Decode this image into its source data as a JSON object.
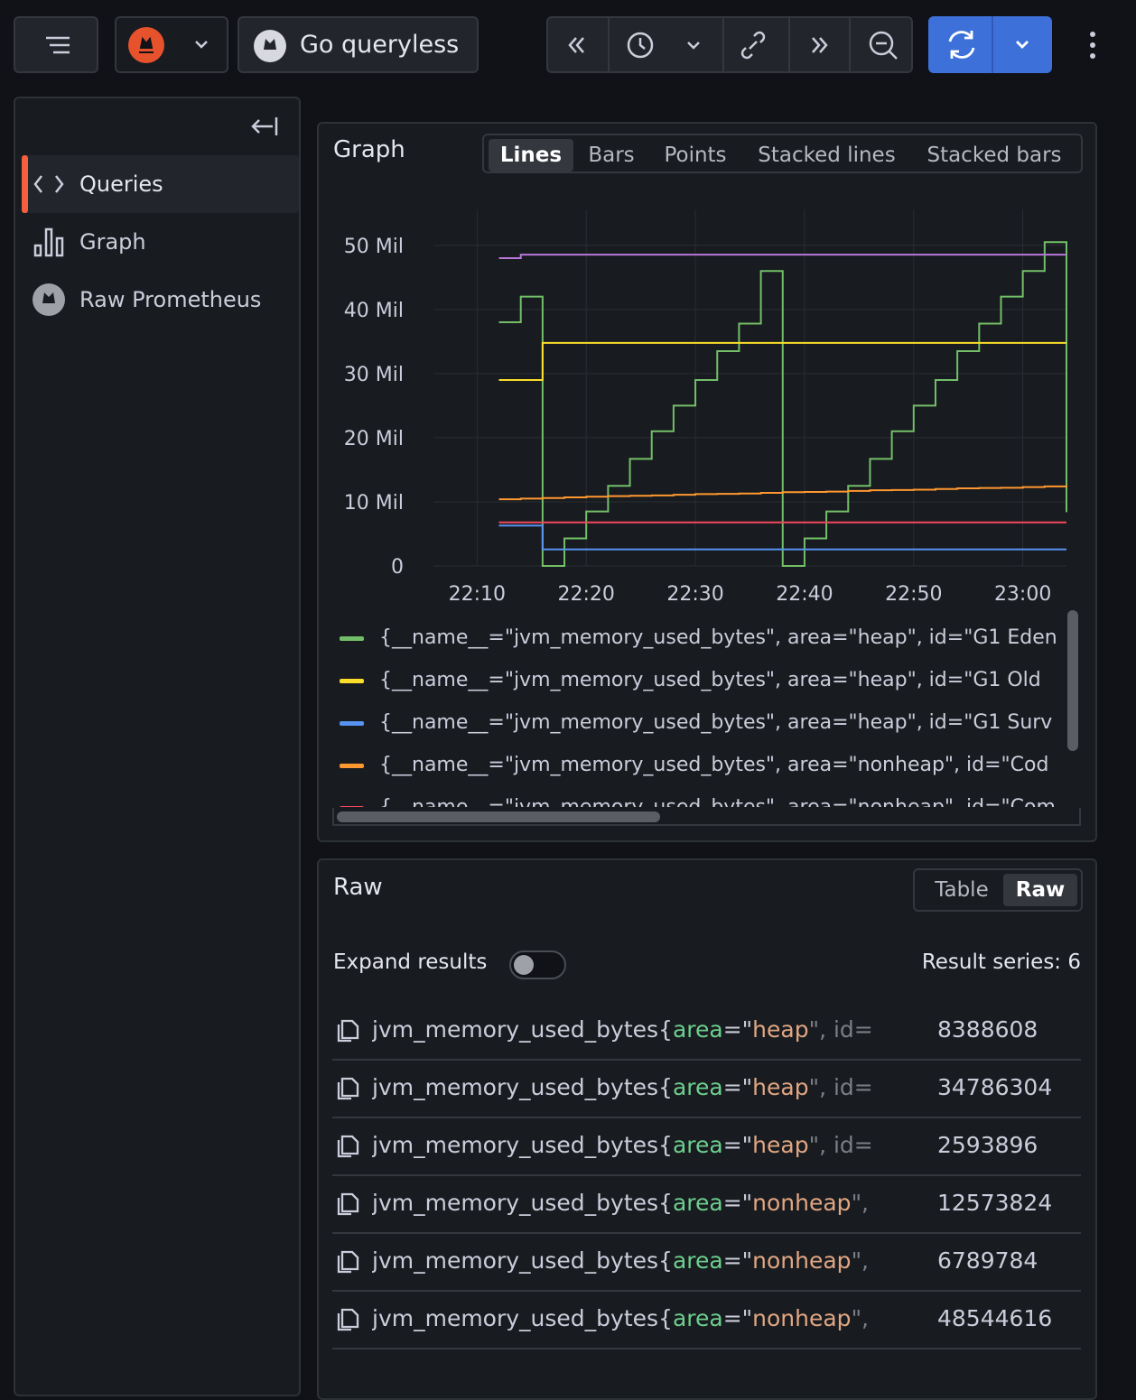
{
  "toolbar": {
    "query_button": "Go queryless"
  },
  "sidebar": {
    "items": [
      "Queries",
      "Graph",
      "Raw Prometheus"
    ],
    "selected": 0
  },
  "graph_panel": {
    "title": "Graph",
    "view_options": [
      "Lines",
      "Bars",
      "Points",
      "Stacked lines",
      "Stacked bars"
    ],
    "selected_view": 0
  },
  "chart_data": {
    "type": "line",
    "interpolation": "step",
    "x": [
      "22:12",
      "22:14",
      "22:16",
      "22:18",
      "22:20",
      "22:22",
      "22:24",
      "22:26",
      "22:28",
      "22:30",
      "22:32",
      "22:34",
      "22:36",
      "22:38",
      "22:40",
      "22:42",
      "22:44",
      "22:46",
      "22:48",
      "22:50",
      "22:52",
      "22:54",
      "22:56",
      "22:58",
      "23:00",
      "23:02",
      "23:04"
    ],
    "xlim": [
      "22:06",
      "23:04"
    ],
    "xticks": [
      "22:10",
      "22:20",
      "22:30",
      "22:40",
      "22:50",
      "23:00"
    ],
    "ylim": [
      0,
      55600000
    ],
    "yticks": [
      0,
      {
        "value": 10000000,
        "label": "10 Mil"
      },
      {
        "value": 20000000,
        "label": "20 Mil"
      },
      {
        "value": 30000000,
        "label": "30 Mil"
      },
      {
        "value": 40000000,
        "label": "40 Mil"
      },
      {
        "value": 50000000,
        "label": "50 Mil"
      }
    ],
    "grid": true,
    "series": [
      {
        "name": "{__name__=\"jvm_memory_used_bytes\", area=\"heap\", id=\"G1 Eden",
        "color": "#73bf69",
        "values": [
          38000000,
          42000000,
          0,
          4300000,
          8500000,
          12500000,
          16700000,
          21000000,
          25000000,
          29000000,
          33500000,
          37800000,
          46000000,
          0,
          4300000,
          8500000,
          12500000,
          16700000,
          21000000,
          25000000,
          29000000,
          33500000,
          37800000,
          42000000,
          46000000,
          50500000,
          8388608
        ]
      },
      {
        "name": "{__name__=\"jvm_memory_used_bytes\", area=\"heap\", id=\"G1 Old",
        "color": "#fade2a",
        "values": [
          29000000,
          29000000,
          34786304,
          34786304,
          34786304,
          34786304,
          34786304,
          34786304,
          34786304,
          34786304,
          34786304,
          34786304,
          34786304,
          34786304,
          34786304,
          34786304,
          34786304,
          34786304,
          34786304,
          34786304,
          34786304,
          34786304,
          34786304,
          34786304,
          34786304,
          34786304,
          34786304
        ]
      },
      {
        "name": "{__name__=\"jvm_memory_used_bytes\", area=\"heap\", id=\"G1 Surv",
        "color": "#5794f2",
        "values": [
          6300000,
          6300000,
          2593896,
          2593896,
          2593896,
          2593896,
          2593896,
          2593896,
          2593896,
          2593896,
          2593896,
          2593896,
          2593896,
          2593896,
          2593896,
          2593896,
          2593896,
          2593896,
          2593896,
          2593896,
          2593896,
          2593896,
          2593896,
          2593896,
          2593896,
          2593896,
          2593896
        ]
      },
      {
        "name": "{__name__=\"jvm_memory_used_bytes\", area=\"nonheap\", id=\"Cod",
        "color": "#ff9830",
        "values": [
          10400000,
          10500000,
          10600000,
          10700000,
          10800000,
          10900000,
          10950000,
          11000000,
          11100000,
          11200000,
          11250000,
          11300000,
          11400000,
          11500000,
          11550000,
          11600000,
          11700000,
          11800000,
          11850000,
          11900000,
          12000000,
          12100000,
          12150000,
          12200000,
          12300000,
          12400000,
          12573824
        ]
      },
      {
        "name": "{__name__=\"jvm_memory_used_bytes\", area=\"nonheap\", id=\"Com",
        "color": "#f2495c",
        "values": [
          6789784,
          6789784,
          6789784,
          6789784,
          6789784,
          6789784,
          6789784,
          6789784,
          6789784,
          6789784,
          6789784,
          6789784,
          6789784,
          6789784,
          6789784,
          6789784,
          6789784,
          6789784,
          6789784,
          6789784,
          6789784,
          6789784,
          6789784,
          6789784,
          6789784,
          6789784,
          6789784
        ]
      },
      {
        "color": "#b877d9",
        "values": [
          48000000,
          48544616,
          48544616,
          48544616,
          48544616,
          48544616,
          48544616,
          48544616,
          48544616,
          48544616,
          48544616,
          48544616,
          48544616,
          48544616,
          48544616,
          48544616,
          48544616,
          48544616,
          48544616,
          48544616,
          48544616,
          48544616,
          48544616,
          48544616,
          48544616,
          48544616,
          48544616
        ]
      }
    ]
  },
  "raw_panel": {
    "title": "Raw",
    "view_options": [
      "Table",
      "Raw"
    ],
    "selected_view": 1,
    "expand_label": "Expand results",
    "expanded": false,
    "result_count": "Result series: 6",
    "rows": [
      {
        "metric": "jvm_memory_used_bytes{",
        "key": "area",
        "sep": "=\"",
        "label": "heap",
        "tail": "\", id=",
        "value": 8388608
      },
      {
        "metric": "jvm_memory_used_bytes{",
        "key": "area",
        "sep": "=\"",
        "label": "heap",
        "tail": "\", id=",
        "value": 34786304
      },
      {
        "metric": "jvm_memory_used_bytes{",
        "key": "area",
        "sep": "=\"",
        "label": "heap",
        "tail": "\", id=",
        "value": 2593896
      },
      {
        "metric": "jvm_memory_used_bytes{",
        "key": "area",
        "sep": "=\"",
        "label": "nonheap",
        "tail": "\",",
        "value": 12573824
      },
      {
        "metric": "jvm_memory_used_bytes{",
        "key": "area",
        "sep": "=\"",
        "label": "nonheap",
        "tail": "\",",
        "value": 6789784
      },
      {
        "metric": "jvm_memory_used_bytes{",
        "key": "area",
        "sep": "=\"",
        "label": "nonheap",
        "tail": "\",",
        "value": 48544616
      }
    ]
  }
}
